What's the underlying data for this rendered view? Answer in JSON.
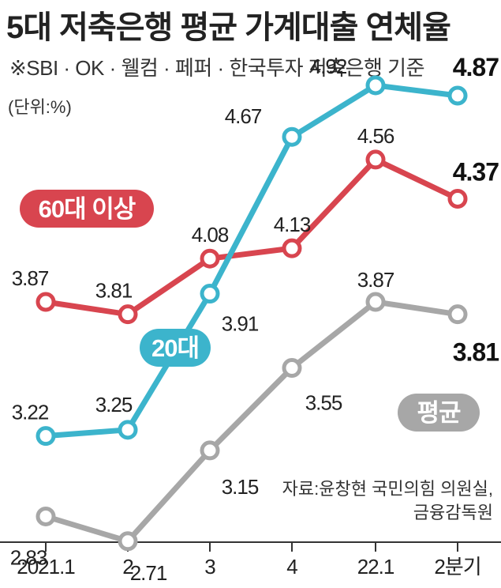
{
  "header": {
    "title": "5대 저축은행 평균 가계대출 연체율",
    "subtitle": "※SBI · OK · 웰컴 · 페퍼 · 한국투자 저축은행 기준",
    "unit": "(단위:%)"
  },
  "source": {
    "line1": "자료:윤창현 국민의힘 의원실,",
    "line2": "금융감독원"
  },
  "colors": {
    "red": "#d8454f",
    "blue": "#3cb4cc",
    "gray": "#a7a7a7",
    "axis": "#333333"
  },
  "chart_data": {
    "type": "line",
    "categories": [
      "2021.1",
      "2",
      "3",
      "4",
      "22.1",
      "2분기"
    ],
    "series": [
      {
        "name": "60대 이상",
        "values": [
          3.87,
          3.81,
          4.08,
          4.13,
          4.56,
          4.37
        ]
      },
      {
        "name": "20대",
        "values": [
          3.22,
          3.25,
          3.91,
          4.67,
          4.92,
          4.87
        ]
      },
      {
        "name": "평균",
        "values": [
          2.83,
          2.71,
          3.15,
          3.55,
          3.87,
          3.81
        ]
      }
    ],
    "value_labels": [
      [
        "3.87",
        "3.81",
        "4.08",
        "4.13",
        "4.56",
        "4.37"
      ],
      [
        "3.22",
        "3.25",
        "3.91",
        "4.67",
        "4.92",
        "4.87"
      ],
      [
        "2.83",
        "2.71",
        "3.15",
        "3.55",
        "3.87",
        "3.81"
      ]
    ],
    "title": "5대 저축은행 평균 가계대출 연체율",
    "xlabel": "",
    "ylabel": "",
    "grid": false,
    "legend": "inline labels"
  }
}
